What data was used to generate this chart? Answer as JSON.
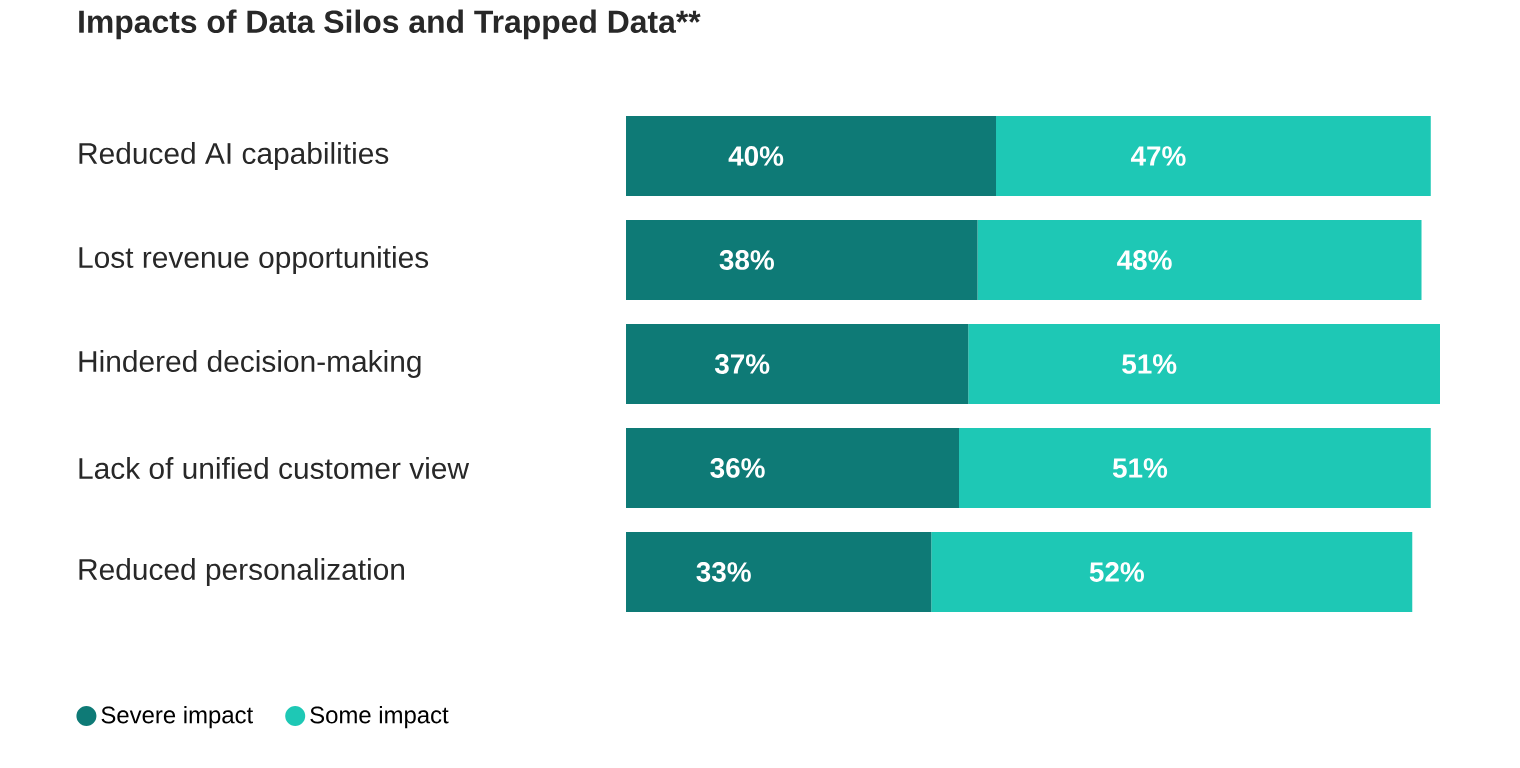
{
  "chart_data": {
    "type": "bar",
    "orientation": "horizontal",
    "stacked": true,
    "title": "Impacts of Data Silos and Trapped Data**",
    "categories": [
      "Reduced AI capabilities",
      "Lost revenue opportunities",
      "Hindered decision-making",
      "Lack of unified customer view",
      "Reduced personalization"
    ],
    "series": [
      {
        "name": "Severe impact",
        "color": "#0e7a76",
        "values": [
          40,
          38,
          37,
          36,
          33
        ],
        "value_labels": [
          "40%",
          "38%",
          "37%",
          "36%",
          "33%"
        ]
      },
      {
        "name": "Some impact",
        "color": "#1ec8b5",
        "values": [
          47,
          48,
          51,
          51,
          52
        ],
        "value_labels": [
          "47%",
          "48%",
          "51%",
          "51%",
          "52%"
        ]
      }
    ],
    "tick_labels": "y",
    "legend": "bottom left"
  }
}
